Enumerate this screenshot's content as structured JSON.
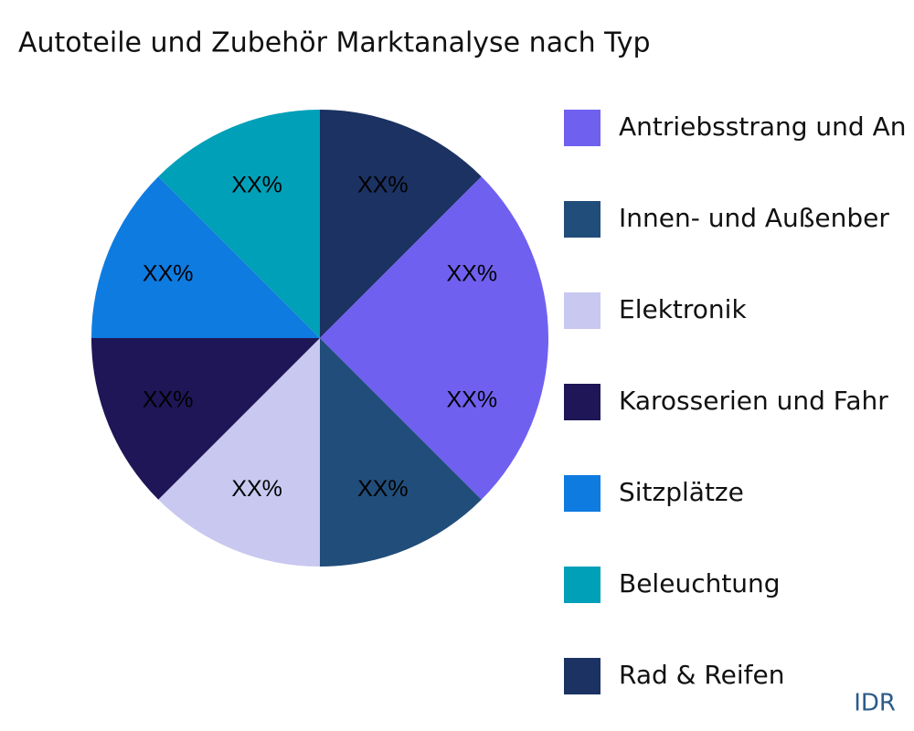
{
  "chart_data": {
    "type": "pie",
    "title": "Autoteile und Zubehör Marktanalyse nach Typ",
    "categories": [
      "Antriebsstrang und An",
      "Innen- und Außenber",
      "Elektronik",
      "Karosserien und Fahr",
      "Sitzplätze",
      "Beleuchtung",
      "Rad & Reifen",
      null
    ],
    "values": [
      12.5,
      12.5,
      12.5,
      12.5,
      12.5,
      12.5,
      12.5,
      12.5
    ],
    "value_labels": [
      "XX%",
      "XX%",
      "XX%",
      "XX%",
      "XX%",
      "XX%",
      "XX%",
      "XX%"
    ],
    "colors": [
      "#7060f0",
      "#214d7a",
      "#c8c8f0",
      "#1e1656",
      "#0e7be0",
      "#00a0b8",
      "#1b3262",
      "#7060f0"
    ],
    "legend": "right"
  },
  "watermark": "IDR"
}
